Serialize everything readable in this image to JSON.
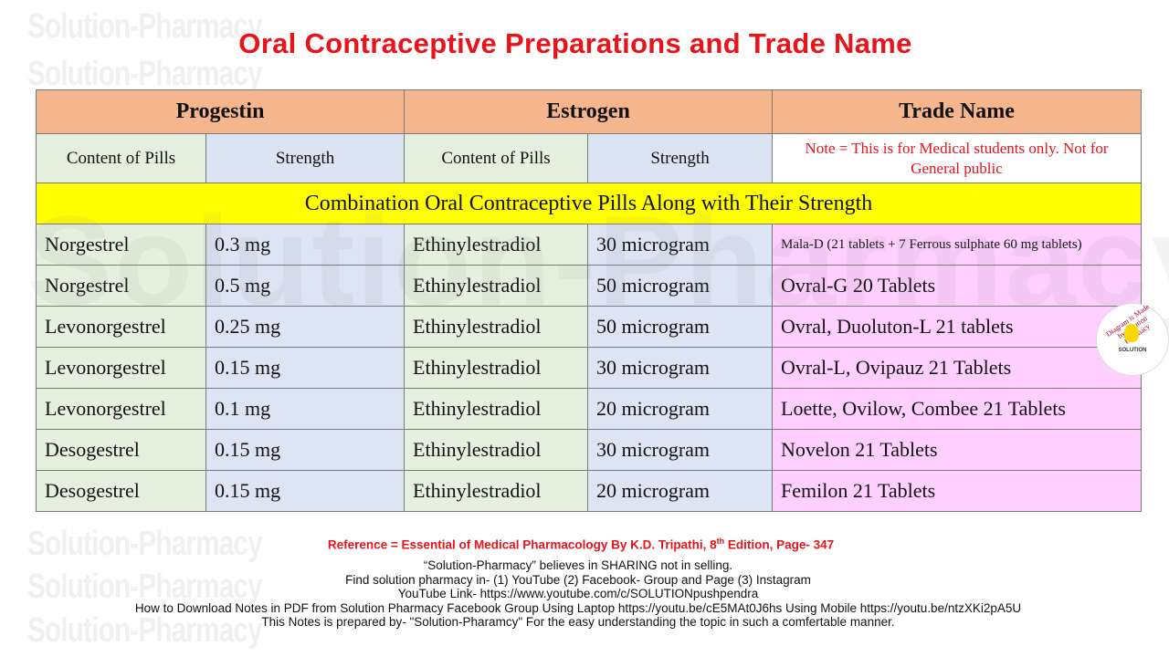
{
  "watermark": "Solution-Pharmacy",
  "watermark_big": "Solution-Pharmacy",
  "title": "Oral Contraceptive  Preparations and Trade Name",
  "header": {
    "progestin": "Progestin",
    "estrogen": "Estrogen",
    "trade_name": "Trade Name"
  },
  "subheader": {
    "progestin_content": "Content of Pills",
    "progestin_strength": "Strength",
    "estrogen_content": "Content of Pills",
    "estrogen_strength": "Strength",
    "note": "Note = This is for Medical  students only.  Not for General public"
  },
  "section_title": "Combination Oral Contraceptive Pills Along with Their Strength",
  "rows": [
    {
      "progestin": "Norgestrel",
      "p_strength": "0.3 mg",
      "estrogen": "Ethinylestradiol",
      "e_strength": "30 microgram",
      "trade": "Mala-D  (21 tablets  + 7 Ferrous sulphate  60 mg tablets)"
    },
    {
      "progestin": "Norgestrel",
      "p_strength": "0.5 mg",
      "estrogen": "Ethinylestradiol",
      "e_strength": "50 microgram",
      "trade": "Ovral-G 20 Tablets"
    },
    {
      "progestin": "Levonorgestrel",
      "p_strength": "0.25 mg",
      "estrogen": "Ethinylestradiol",
      "e_strength": "50 microgram",
      "trade": "Ovral, Duoluton-L 21 tablets"
    },
    {
      "progestin": "Levonorgestrel",
      "p_strength": "0.15 mg",
      "estrogen": "Ethinylestradiol",
      "e_strength": "30 microgram",
      "trade": "Ovral-L, Ovipauz 21 Tablets"
    },
    {
      "progestin": "Levonorgestrel",
      "p_strength": "0.1 mg",
      "estrogen": "Ethinylestradiol",
      "e_strength": "20 microgram",
      "trade": "Loette, Ovilow,  Combee 21 Tablets"
    },
    {
      "progestin": "Desogestrel",
      "p_strength": "0.15 mg",
      "estrogen": "Ethinylestradiol",
      "e_strength": "30 microgram",
      "trade": "Novelon 21 Tablets"
    },
    {
      "progestin": "Desogestrel",
      "p_strength": "0.15 mg",
      "estrogen": "Ethinylestradiol",
      "e_strength": "20 microgram",
      "trade": "Femilon 21 Tablets"
    }
  ],
  "badge": {
    "text": "Diagram is Made by Solution Pharmacy",
    "sub": "SOLUTION"
  },
  "reference": {
    "before": "Reference = Essential of Medical Pharmacology By K.D. Tripathi, 8",
    "sup": "th",
    "after": " Edition, Page- 347"
  },
  "footer": [
    "“Solution-Pharmacy” believes in SHARING not in selling.",
    "Find solution pharmacy in- (1) YouTube (2) Facebook- Group and Page (3) Instagram",
    "YouTube Link- https://www.youtube.com/c/SOLUTIONpushpendra",
    "How to Download Notes in PDF from Solution Pharmacy Facebook Group Using Laptop https://youtu.be/cE5MAt0J6hs Using Mobile https://youtu.be/ntzXKi2pA5U",
    "This Notes is prepared by- \"Solution-Pharamcy\" For the easy understanding the topic in such a comfertable manner."
  ],
  "colors": {
    "title": "#e8141b",
    "header_bg": "#f4b084",
    "progestin_bg": "#e2efda",
    "strength_bg": "#d9e1f2",
    "trade_bg": "#ffccff",
    "band_bg": "#ffff00"
  }
}
